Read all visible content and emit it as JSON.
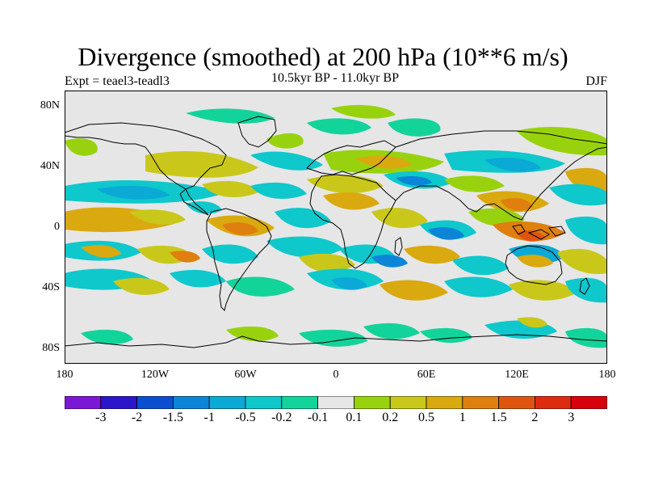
{
  "title": "Divergence (smoothed) at 200 hPa (10**6 m/s)",
  "experiment": "Expt = teael3-teadl3",
  "period": "10.5kyr BP - 11.0kyr BP",
  "season": "DJF",
  "lat_labels": [
    "80N",
    "40N",
    "0",
    "40S",
    "80S"
  ],
  "lon_labels": [
    "180",
    "120W",
    "60W",
    "0",
    "60E",
    "120E",
    "180"
  ],
  "colorbar": {
    "labels": [
      "-3",
      "-2",
      "-1.5",
      "-1",
      "-0.5",
      "-0.2",
      "-0.1",
      "0.1",
      "0.2",
      "0.5",
      "1",
      "1.5",
      "2",
      "3"
    ],
    "colors": [
      "#7a18d6",
      "#2b16c9",
      "#0a4fd0",
      "#0b85d8",
      "#0aa9d6",
      "#0ec8cc",
      "#12d49a",
      "#e6e6e6",
      "#98d20e",
      "#c9c81a",
      "#d9a90f",
      "#df7f0e",
      "#df550f",
      "#dc2b0f",
      "#d8000c"
    ]
  },
  "map_colors": {
    "ocean": "#e6e6e6",
    "coast": "#000000",
    "frame": "#000000"
  }
}
